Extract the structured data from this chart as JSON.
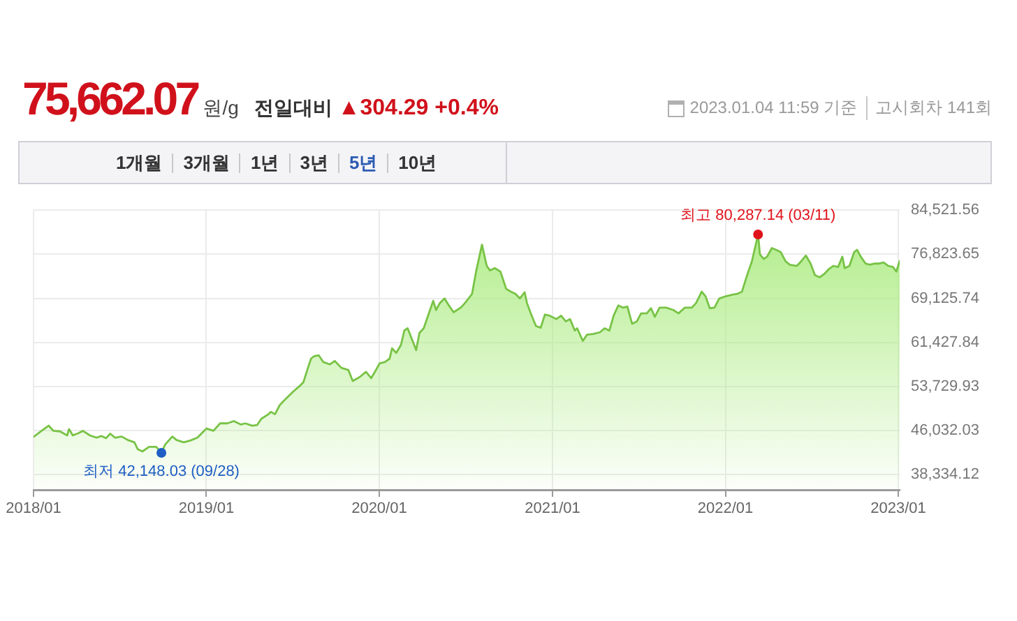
{
  "chart_data": {
    "type": "area",
    "title": "75,662.07",
    "annotations": [
      "원/g",
      "전일대비",
      "▲304.29 +0.4%",
      "2023.01.04 11:59 기준",
      "고시회차 141회",
      "1개월",
      "3개월",
      "1년",
      "3년",
      "5년",
      "10년",
      {
        "text": "최고 80,287.14 (03/11)",
        "x": "2022-03-11",
        "y": 80287.14
      },
      {
        "text": "최저 42,148.03 (09/28)",
        "x": "2018-09-28",
        "y": 42148.03
      }
    ],
    "x": [
      "2018-01-02",
      "2018-01-18",
      "2018-02-02",
      "2018-02-12",
      "2018-02-26",
      "2018-03-13",
      "2018-03-17",
      "2018-03-25",
      "2018-04-06",
      "2018-04-15",
      "2018-04-30",
      "2018-05-14",
      "2018-05-24",
      "2018-06-03",
      "2018-06-12",
      "2018-06-22",
      "2018-07-06",
      "2018-07-19",
      "2018-08-02",
      "2018-08-09",
      "2018-08-19",
      "2018-09-02",
      "2018-09-17",
      "2018-09-28",
      "2018-10-06",
      "2018-10-21",
      "2018-10-30",
      "2018-11-14",
      "2018-11-28",
      "2018-12-13",
      "2019-01-01",
      "2019-01-16",
      "2019-01-30",
      "2019-02-14",
      "2019-02-28",
      "2019-03-15",
      "2019-03-24",
      "2019-04-08",
      "2019-04-18",
      "2019-04-27",
      "2019-05-12",
      "2019-05-17",
      "2019-05-26",
      "2019-06-05",
      "2019-06-19",
      "2019-07-04",
      "2019-07-18",
      "2019-07-25",
      "2019-08-02",
      "2019-08-10",
      "2019-08-16",
      "2019-08-26",
      "2019-09-05",
      "2019-09-19",
      "2019-09-29",
      "2019-10-13",
      "2019-10-28",
      "2019-11-06",
      "2019-11-21",
      "2019-12-04",
      "2019-12-15",
      "2019-12-25",
      "2020-01-02",
      "2020-01-13",
      "2020-01-23",
      "2020-01-28",
      "2020-02-06",
      "2020-02-16",
      "2020-02-23",
      "2020-03-01",
      "2020-03-11",
      "2020-03-19",
      "2020-03-26",
      "2020-04-04",
      "2020-04-14",
      "2020-04-24",
      "2020-04-30",
      "2020-05-08",
      "2020-05-18",
      "2020-05-27",
      "2020-06-06",
      "2020-06-21",
      "2020-06-30",
      "2020-07-15",
      "2020-07-24",
      "2020-08-05",
      "2020-08-15",
      "2020-08-22",
      "2020-09-01",
      "2020-09-13",
      "2020-09-25",
      "2020-10-05",
      "2020-10-15",
      "2020-10-24",
      "2020-11-03",
      "2020-11-08",
      "2020-11-17",
      "2020-11-27",
      "2020-12-07",
      "2020-12-16",
      "2020-12-26",
      "2021-01-09",
      "2021-01-19",
      "2021-01-29",
      "2021-02-07",
      "2021-02-17",
      "2021-02-22",
      "2021-03-06",
      "2021-03-15",
      "2021-03-28",
      "2021-04-11",
      "2021-04-21",
      "2021-05-01",
      "2021-05-10",
      "2021-05-20",
      "2021-05-30",
      "2021-06-08",
      "2021-06-18",
      "2021-06-28",
      "2021-07-07",
      "2021-07-19",
      "2021-07-28",
      "2021-08-05",
      "2021-08-15",
      "2021-08-29",
      "2021-09-13",
      "2021-09-24",
      "2021-10-07",
      "2021-10-22",
      "2021-10-31",
      "2021-11-12",
      "2021-11-20",
      "2021-11-29",
      "2021-12-09",
      "2021-12-19",
      "2022-01-02",
      "2022-01-17",
      "2022-01-26",
      "2022-02-05",
      "2022-02-16",
      "2022-02-26",
      "2022-03-11",
      "2022-03-15",
      "2022-03-23",
      "2022-03-30",
      "2022-04-09",
      "2022-04-18",
      "2022-04-28",
      "2022-05-08",
      "2022-05-17",
      "2022-06-01",
      "2022-06-10",
      "2022-06-20",
      "2022-06-30",
      "2022-07-09",
      "2022-07-19",
      "2022-07-29",
      "2022-08-07",
      "2022-08-17",
      "2022-08-27",
      "2022-09-05",
      "2022-09-10",
      "2022-09-20",
      "2022-09-30",
      "2022-10-06",
      "2022-10-14",
      "2022-10-24",
      "2022-11-02",
      "2022-11-12",
      "2022-11-22",
      "2022-12-01",
      "2022-12-11",
      "2022-12-21",
      "2022-12-28",
      "2023-01-04"
    ],
    "series": [
      {
        "color": "#78c346",
        "values": [
          45000,
          46000,
          46900,
          46000,
          45900,
          45200,
          46300,
          45200,
          45600,
          46000,
          45200,
          44800,
          45100,
          44700,
          45500,
          44800,
          45000,
          44400,
          44000,
          42800,
          42400,
          43200,
          43200,
          42148.03,
          43600,
          45000,
          44400,
          44000,
          44300,
          44800,
          46400,
          46000,
          47300,
          47300,
          47700,
          47100,
          47300,
          46900,
          47000,
          48100,
          48900,
          49300,
          48900,
          50500,
          51700,
          52900,
          53900,
          54500,
          56600,
          58600,
          59000,
          59200,
          58000,
          57600,
          58200,
          57000,
          56600,
          54700,
          55400,
          56300,
          55200,
          56600,
          57800,
          58000,
          58600,
          60400,
          59600,
          61000,
          63500,
          63900,
          61800,
          60100,
          63100,
          63900,
          66300,
          68700,
          67100,
          68300,
          69100,
          67900,
          66700,
          67500,
          68300,
          69900,
          74000,
          78500,
          74800,
          74000,
          74400,
          73800,
          70800,
          70300,
          69900,
          69100,
          70200,
          68300,
          66300,
          64300,
          64000,
          66300,
          66100,
          65500,
          66100,
          65100,
          65500,
          63500,
          63900,
          61700,
          62800,
          62900,
          63200,
          63900,
          63500,
          66100,
          67900,
          67500,
          67700,
          64700,
          65100,
          66500,
          66500,
          67400,
          65900,
          67500,
          67500,
          67100,
          66500,
          67500,
          67500,
          68300,
          70300,
          69500,
          67400,
          67500,
          69100,
          69500,
          69800,
          69900,
          70300,
          73200,
          75600,
          80287.14,
          76800,
          76000,
          76400,
          77900,
          77600,
          77200,
          75600,
          75000,
          74800,
          75600,
          76600,
          75200,
          73200,
          72800,
          73400,
          74200,
          74800,
          74600,
          76400,
          74400,
          74800,
          77200,
          77600,
          76400,
          75200,
          75000,
          75200,
          75200,
          75400,
          74800,
          74600,
          73800,
          75662.07
        ]
      }
    ],
    "xlim": [
      "2018-01-01",
      "2023-01-04"
    ],
    "xticks": [
      {
        "value": "2018-01",
        "label": "2018/01"
      },
      {
        "value": "2019-01",
        "label": "2019/01"
      },
      {
        "value": "2020-01",
        "label": "2020/01"
      },
      {
        "value": "2021-01",
        "label": "2021/01"
      },
      {
        "value": "2022-01",
        "label": "2022/01"
      },
      {
        "value": "2023-01",
        "label": "2023/01"
      }
    ],
    "ylim": [
      35700,
      84521.56
    ],
    "yticks": [
      {
        "value": 38334.12,
        "label": "38,334.12"
      },
      {
        "value": 46032.03,
        "label": "46,032.03"
      },
      {
        "value": 53729.93,
        "label": "53,729.93"
      },
      {
        "value": 61427.84,
        "label": "61,427.84"
      },
      {
        "value": 69125.74,
        "label": "69,125.74"
      },
      {
        "value": 76823.65,
        "label": "76,823.65"
      },
      {
        "value": 84521.56,
        "label": "84,521.56"
      }
    ],
    "grid": true,
    "legend": false,
    "marker": "none",
    "line_style": "solid"
  }
}
